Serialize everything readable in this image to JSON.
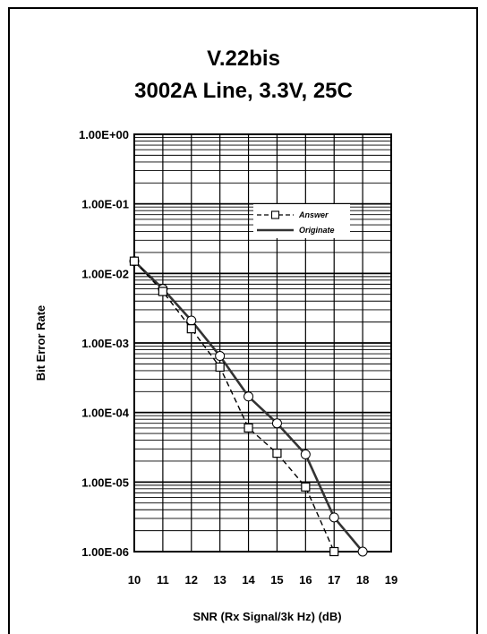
{
  "chart_data": {
    "type": "line",
    "title": "V.22bis",
    "subtitle": "3002A Line, 3.3V, 25C",
    "xlabel": "SNR (Rx Signal/3k Hz) (dB)",
    "ylabel": "Bit Error Rate",
    "x_ticks": [
      "10",
      "11",
      "12",
      "13",
      "14",
      "15",
      "16",
      "17",
      "18",
      "19"
    ],
    "y_ticks": [
      "1.00E+00",
      "1.00E-01",
      "1.00E-02",
      "1.00E-03",
      "1.00E-04",
      "1.00E-05",
      "1.00E-06"
    ],
    "xlim": [
      10,
      19
    ],
    "ylim": [
      1e-06,
      1
    ],
    "yscale": "log",
    "grid": true,
    "legend": "top-right",
    "series": [
      {
        "name": "Answer",
        "x": [
          10,
          11,
          12,
          13,
          14,
          15,
          16,
          17
        ],
        "y": [
          0.015,
          0.0055,
          0.0016,
          0.00045,
          6e-05,
          2.6e-05,
          8.5e-06,
          1e-06
        ]
      },
      {
        "name": "Originate",
        "x": [
          10,
          11,
          12,
          13,
          14,
          15,
          16,
          17,
          18
        ],
        "y": [
          0.015,
          0.006,
          0.0021,
          0.00065,
          0.00017,
          7e-05,
          2.5e-05,
          3.1e-06,
          1e-06
        ]
      }
    ]
  }
}
